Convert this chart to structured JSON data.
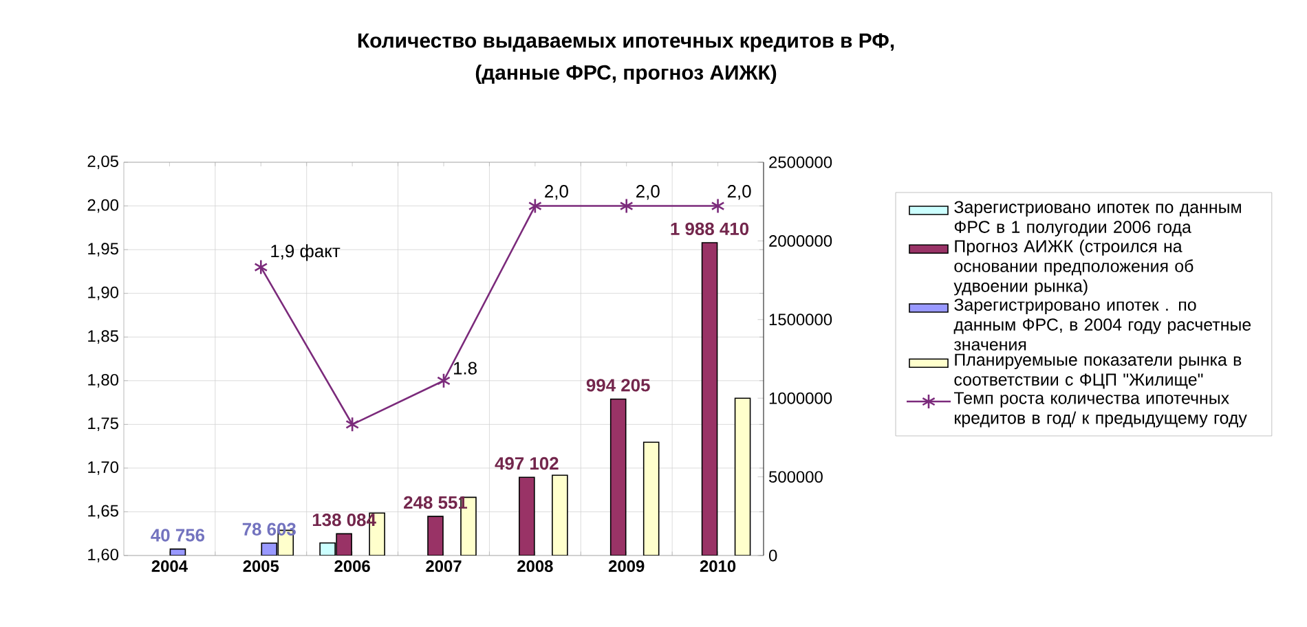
{
  "chart_data": {
    "type": "bar",
    "title": "Количество выдаваемых ипотечных кредитов в РФ,",
    "subtitle": "(данные ФРС, прогноз  АИЖК)",
    "categories": [
      "2004",
      "2005",
      "2006",
      "2007",
      "2008",
      "2009",
      "2010"
    ],
    "series": [
      {
        "name": "Зарегистриовано ипотек по данным ФРС в 1 полугодии 2006 года",
        "color": "#ccffff",
        "axis": "y2",
        "values": [
          null,
          null,
          80000,
          null,
          null,
          null,
          null
        ]
      },
      {
        "name": "Прогноз АИЖК (строился на основании предположения об удвоении рынка)",
        "color": "#993366",
        "axis": "y2",
        "values": [
          null,
          null,
          138084,
          248551,
          497102,
          994205,
          1988410
        ],
        "value_labels": [
          null,
          null,
          "138 084",
          "248 551",
          "497 102",
          "994 205",
          "1 988 410"
        ]
      },
      {
        "name": "Зарегистрировано ипотек . по данным ФРС, в 2004 году расчетные значения",
        "color": "#9999ff",
        "axis": "y2",
        "values": [
          40756,
          78603,
          null,
          null,
          null,
          null,
          null
        ],
        "value_labels": [
          "40 756",
          "78 603",
          null,
          null,
          null,
          null,
          null
        ]
      },
      {
        "name": "Планируемыые показатели рынка в соответствии с ФЦП \"Жилище\"",
        "color": "#ffffcc",
        "axis": "y2",
        "values": [
          null,
          160000,
          270000,
          370000,
          510000,
          720000,
          1000000
        ]
      },
      {
        "type": "line",
        "name": "Темп роста количества ипотечных кредитов в год/ к предыдущему году",
        "color": "#7b2a7b",
        "axis": "y",
        "marker": "cross",
        "line_style": "solid",
        "values": [
          null,
          1.93,
          1.75,
          1.8,
          2.0,
          2.0,
          2.0
        ],
        "value_labels": [
          null,
          "1,9 факт",
          null,
          "1.8",
          "2,0",
          "2,0",
          "2,0"
        ]
      }
    ],
    "ylim": [
      1.6,
      2.05
    ],
    "yticks": [
      {
        "value": 1.6,
        "label": "1,60"
      },
      {
        "value": 1.65,
        "label": "1,65"
      },
      {
        "value": 1.7,
        "label": "1,70"
      },
      {
        "value": 1.75,
        "label": "1,75"
      },
      {
        "value": 1.8,
        "label": "1,80"
      },
      {
        "value": 1.85,
        "label": "1,85"
      },
      {
        "value": 1.9,
        "label": "1,90"
      },
      {
        "value": 1.95,
        "label": "1,95"
      },
      {
        "value": 2.0,
        "label": "2,00"
      },
      {
        "value": 2.05,
        "label": "2,05"
      }
    ],
    "y2lim": [
      0,
      2500000
    ],
    "y2ticks": [
      0,
      500000,
      1000000,
      1500000,
      2000000,
      2500000
    ],
    "grid": true,
    "legend": "right"
  }
}
